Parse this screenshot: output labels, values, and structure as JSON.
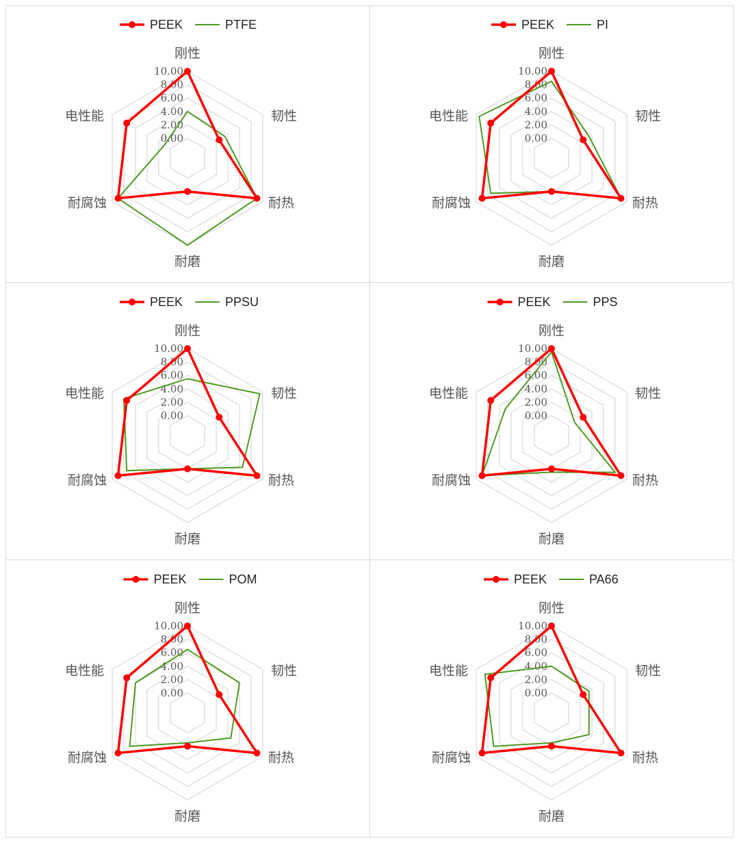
{
  "colors": {
    "peek": "#ff0000",
    "other": "#4e9a22",
    "grid": "#d9d9d9"
  },
  "chart_data": [
    {
      "type": "radar",
      "axes": [
        "刚性",
        "韧性",
        "耐热",
        "耐磨",
        "耐腐蚀",
        "电性能"
      ],
      "ticks": [
        "0.00",
        "2.00",
        "4.00",
        "6.00",
        "8.00",
        "10.00"
      ],
      "rlim": [
        0,
        10
      ],
      "legend": "top",
      "series": [
        {
          "name": "PEEK",
          "values": [
            10,
            2.5,
            9,
            2,
            9,
            7.5
          ]
        },
        {
          "name": "PTFE",
          "values": [
            4,
            3.5,
            9,
            10,
            9,
            1
          ]
        }
      ]
    },
    {
      "type": "radar",
      "axes": [
        "刚性",
        "韧性",
        "耐热",
        "耐磨",
        "耐腐蚀",
        "电性能"
      ],
      "ticks": [
        "0.00",
        "2.00",
        "4.00",
        "6.00",
        "8.00",
        "10.00"
      ],
      "rlim": [
        0,
        10
      ],
      "legend": "top",
      "series": [
        {
          "name": "PEEK",
          "values": [
            10,
            2.5,
            9,
            2,
            9,
            7.5
          ]
        },
        {
          "name": "PI",
          "values": [
            8.5,
            3.5,
            9,
            2,
            7.5,
            9.5
          ]
        }
      ]
    },
    {
      "type": "radar",
      "axes": [
        "刚性",
        "韧性",
        "耐热",
        "耐磨",
        "耐腐蚀",
        "电性能"
      ],
      "ticks": [
        "0.00",
        "2.00",
        "4.00",
        "6.00",
        "8.00",
        "10.00"
      ],
      "rlim": [
        0,
        10
      ],
      "legend": "top",
      "series": [
        {
          "name": "PEEK",
          "values": [
            10,
            2.5,
            9,
            2,
            9,
            7.5
          ]
        },
        {
          "name": "PPSU",
          "values": [
            5.5,
            9.5,
            6.5,
            2,
            7.5,
            8
          ]
        }
      ]
    },
    {
      "type": "radar",
      "axes": [
        "刚性",
        "韧性",
        "耐热",
        "耐磨",
        "耐腐蚀",
        "电性能"
      ],
      "ticks": [
        "0.00",
        "2.00",
        "4.00",
        "6.00",
        "8.00",
        "10.00"
      ],
      "rlim": [
        0,
        10
      ],
      "legend": "top",
      "series": [
        {
          "name": "PEEK",
          "values": [
            10,
            2.5,
            9,
            2,
            9,
            7.5
          ]
        },
        {
          "name": "PPS",
          "values": [
            9.5,
            1,
            8,
            2.5,
            9,
            5
          ]
        }
      ]
    },
    {
      "type": "radar",
      "axes": [
        "刚性",
        "韧性",
        "耐热",
        "耐磨",
        "耐腐蚀",
        "电性能"
      ],
      "ticks": [
        "0.00",
        "2.00",
        "4.00",
        "6.00",
        "8.00",
        "10.00"
      ],
      "rlim": [
        0,
        10
      ],
      "legend": "top",
      "series": [
        {
          "name": "PEEK",
          "values": [
            10,
            2.5,
            9,
            2,
            9,
            7.5
          ]
        },
        {
          "name": "POM",
          "values": [
            6.5,
            6,
            4.5,
            1.5,
            7,
            6
          ]
        }
      ]
    },
    {
      "type": "radar",
      "axes": [
        "刚性",
        "韧性",
        "耐热",
        "耐磨",
        "耐腐蚀",
        "电性能"
      ],
      "ticks": [
        "0.00",
        "2.00",
        "4.00",
        "6.00",
        "8.00",
        "10.00"
      ],
      "rlim": [
        0,
        10
      ],
      "legend": "top",
      "series": [
        {
          "name": "PEEK",
          "values": [
            10,
            2.5,
            9,
            2,
            9,
            7.5
          ]
        },
        {
          "name": "PA66",
          "values": [
            4,
            3.5,
            3.5,
            1.5,
            7,
            8.5
          ]
        }
      ]
    }
  ]
}
